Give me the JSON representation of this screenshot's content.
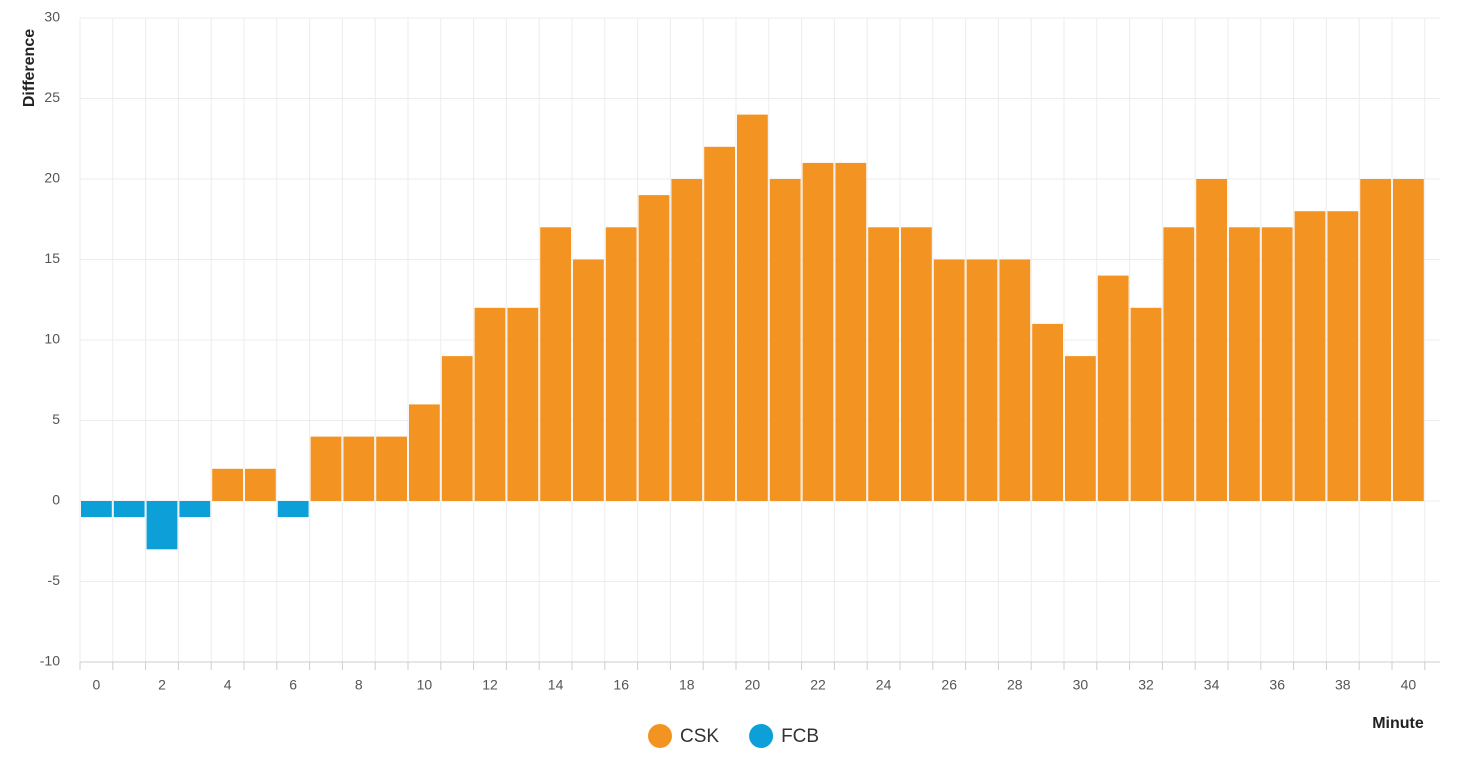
{
  "chart_data": {
    "type": "bar",
    "x_label": "Minute",
    "y_label": "Difference",
    "categories": [
      0,
      null,
      2,
      null,
      4,
      null,
      6,
      null,
      8,
      null,
      10,
      null,
      12,
      null,
      14,
      null,
      16,
      null,
      18,
      null,
      20,
      null,
      22,
      null,
      24,
      null,
      26,
      null,
      28,
      null,
      30,
      null,
      32,
      null,
      34,
      null,
      36,
      null,
      38,
      null,
      40
    ],
    "series": [
      {
        "name": "CSK",
        "color": "#f39422",
        "values": [
          null,
          null,
          null,
          null,
          2,
          2,
          null,
          4,
          4,
          4,
          6,
          9,
          12,
          12,
          17,
          15,
          17,
          19,
          20,
          22,
          24,
          20,
          21,
          21,
          17,
          17,
          15,
          15,
          15,
          11,
          9,
          14,
          12,
          17,
          20,
          17,
          17,
          18,
          18,
          20,
          20
        ]
      },
      {
        "name": "FCB",
        "color": "#0d9fd8",
        "values": [
          -1,
          -1,
          -3,
          -1,
          null,
          null,
          -1,
          null,
          null,
          null,
          null,
          null,
          null,
          null,
          null,
          null,
          null,
          null,
          null,
          null,
          null,
          null,
          null,
          null,
          null,
          null,
          null,
          null,
          null,
          null,
          null,
          null,
          null,
          null,
          null,
          null,
          null,
          null,
          null,
          null,
          null
        ]
      }
    ],
    "ylim": [
      -10,
      30
    ],
    "yticks": [
      -10,
      -5,
      0,
      5,
      10,
      15,
      20,
      25,
      30
    ],
    "grid": true
  }
}
